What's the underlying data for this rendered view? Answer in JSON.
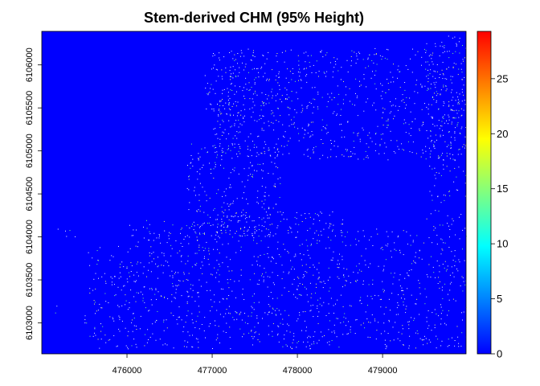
{
  "chart_data": {
    "type": "heatmap",
    "title": "Stem-derived CHM (95% Height)",
    "xlabel": "",
    "ylabel": "",
    "xlim": [
      475000,
      479980
    ],
    "ylim": [
      6102640,
      6106390
    ],
    "x_ticks": [
      476000,
      477000,
      478000,
      479000
    ],
    "x_tick_labels": [
      "476000",
      "477000",
      "478000",
      "479000"
    ],
    "y_ticks": [
      6103000,
      6103500,
      6104000,
      6104500,
      6105000,
      6105500,
      6106000
    ],
    "y_tick_labels": [
      "6103000",
      "6103500",
      "6104000",
      "6104500",
      "6105000",
      "6105500",
      "6106000"
    ],
    "background_value": 0,
    "legend": {
      "placement": "right",
      "range": [
        0,
        29.3
      ],
      "ticks": [
        0,
        5,
        10,
        15,
        20,
        25
      ],
      "tick_labels": [
        "0",
        "5",
        "10",
        "15",
        "20",
        "25"
      ],
      "colors": [
        "#0000FF",
        "#0080FF",
        "#00FFFF",
        "#80FF80",
        "#FFFF00",
        "#FF8000",
        "#FF0000"
      ]
    },
    "stem_clusters": [
      {
        "x": [
          475500,
          476000
        ],
        "y": [
          6102700,
          6103900
        ],
        "density": 0.8
      },
      {
        "x": [
          476000,
          476900
        ],
        "y": [
          6102700,
          6104200
        ],
        "density": 1.0
      },
      {
        "x": [
          476700,
          477800
        ],
        "y": [
          6104000,
          6105100
        ],
        "density": 1.0
      },
      {
        "x": [
          476900,
          478600
        ],
        "y": [
          6102700,
          6104300
        ],
        "density": 1.0
      },
      {
        "x": [
          478600,
          479000
        ],
        "y": [
          6102800,
          6104100
        ],
        "density": 0.7
      },
      {
        "x": [
          479000,
          479980
        ],
        "y": [
          6102700,
          6104100
        ],
        "density": 0.9
      },
      {
        "x": [
          477000,
          479980
        ],
        "y": [
          6104900,
          6106200
        ],
        "density": 1.0
      },
      {
        "x": [
          476900,
          477600
        ],
        "y": [
          6105400,
          6106000
        ],
        "density": 0.8
      },
      {
        "x": [
          479500,
          479980
        ],
        "y": [
          6104100,
          6106350
        ],
        "density": 0.8
      },
      {
        "x": [
          475100,
          475400
        ],
        "y": [
          6103950,
          6104150
        ],
        "density": 0.4
      },
      {
        "x": [
          475000,
          475200
        ],
        "y": [
          6103050,
          6103200
        ],
        "density": 0.3
      }
    ]
  }
}
